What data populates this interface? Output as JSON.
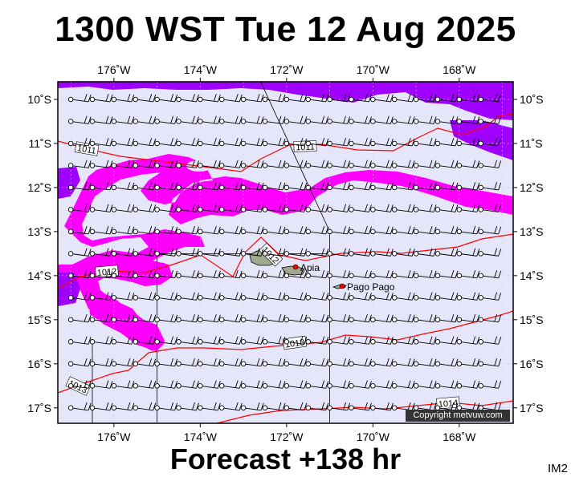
{
  "title": "1300 WST Tue 12 Aug 2025",
  "subtitle": "Forecast +138 hr",
  "map_code": "IM2",
  "copyright": "Copyright metvuw.com",
  "map_extent": {
    "lon_min": -177.3,
    "lon_max": -166.75,
    "lat_min": -17.35,
    "lat_max": -9.6
  },
  "lon_ticks": [
    {
      "value": -176,
      "label": "176˚W"
    },
    {
      "value": -174,
      "label": "174˚W"
    },
    {
      "value": -172,
      "label": "172˚W"
    },
    {
      "value": -170,
      "label": "170˚W"
    },
    {
      "value": -168,
      "label": "168˚W"
    }
  ],
  "lat_ticks": [
    {
      "value": -10,
      "label": "10˚S"
    },
    {
      "value": -11,
      "label": "11˚S"
    },
    {
      "value": -12,
      "label": "12˚S"
    },
    {
      "value": -13,
      "label": "13˚S"
    },
    {
      "value": -14,
      "label": "14˚S"
    },
    {
      "value": -15,
      "label": "15˚S"
    },
    {
      "value": -16,
      "label": "16˚S"
    },
    {
      "value": -17,
      "label": "17˚S"
    }
  ],
  "places": [
    {
      "name": "Apia",
      "lon": -171.77,
      "lat": -13.83
    },
    {
      "name": "Pago Pago",
      "lon": -170.7,
      "lat": -14.28
    }
  ],
  "isobar_labels": [
    "1011",
    "1011",
    "1012",
    "1012",
    "1013",
    "1013",
    "1014"
  ],
  "colors": {
    "magenta": "#ff00ff",
    "purple": "#a000ff",
    "lavender": "#e6e6fa",
    "isobar": "#ff0000",
    "land": "#a0a890"
  }
}
